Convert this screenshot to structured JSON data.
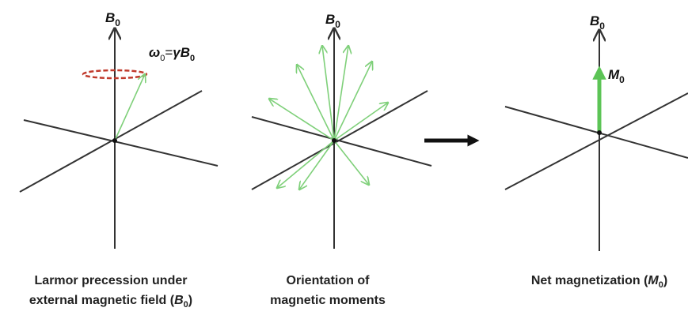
{
  "panels": [
    {
      "axis_label": {
        "main": "B",
        "sub": "0"
      },
      "equation": {
        "omega": "ω",
        "omega_sub": "0",
        "eq": "=",
        "gamma": "γ",
        "b": "B",
        "b_sub": "0"
      },
      "caption": {
        "line1": "Larmor precession under",
        "line2_pre": "external magnetic field (",
        "line2_var": "B",
        "line2_sub": "0",
        "line2_post": ")"
      }
    },
    {
      "axis_label": {
        "main": "B",
        "sub": "0"
      },
      "caption": {
        "line1": "Orientation of",
        "line2": "magnetic moments"
      }
    },
    {
      "axis_label": {
        "main": "B",
        "sub": "0"
      },
      "vector_label": {
        "main": "M",
        "sub": "0"
      },
      "caption": {
        "line1_pre": "Net magnetization (",
        "line1_var": "M",
        "line1_sub": "0",
        "line1_post": ")"
      }
    }
  ]
}
